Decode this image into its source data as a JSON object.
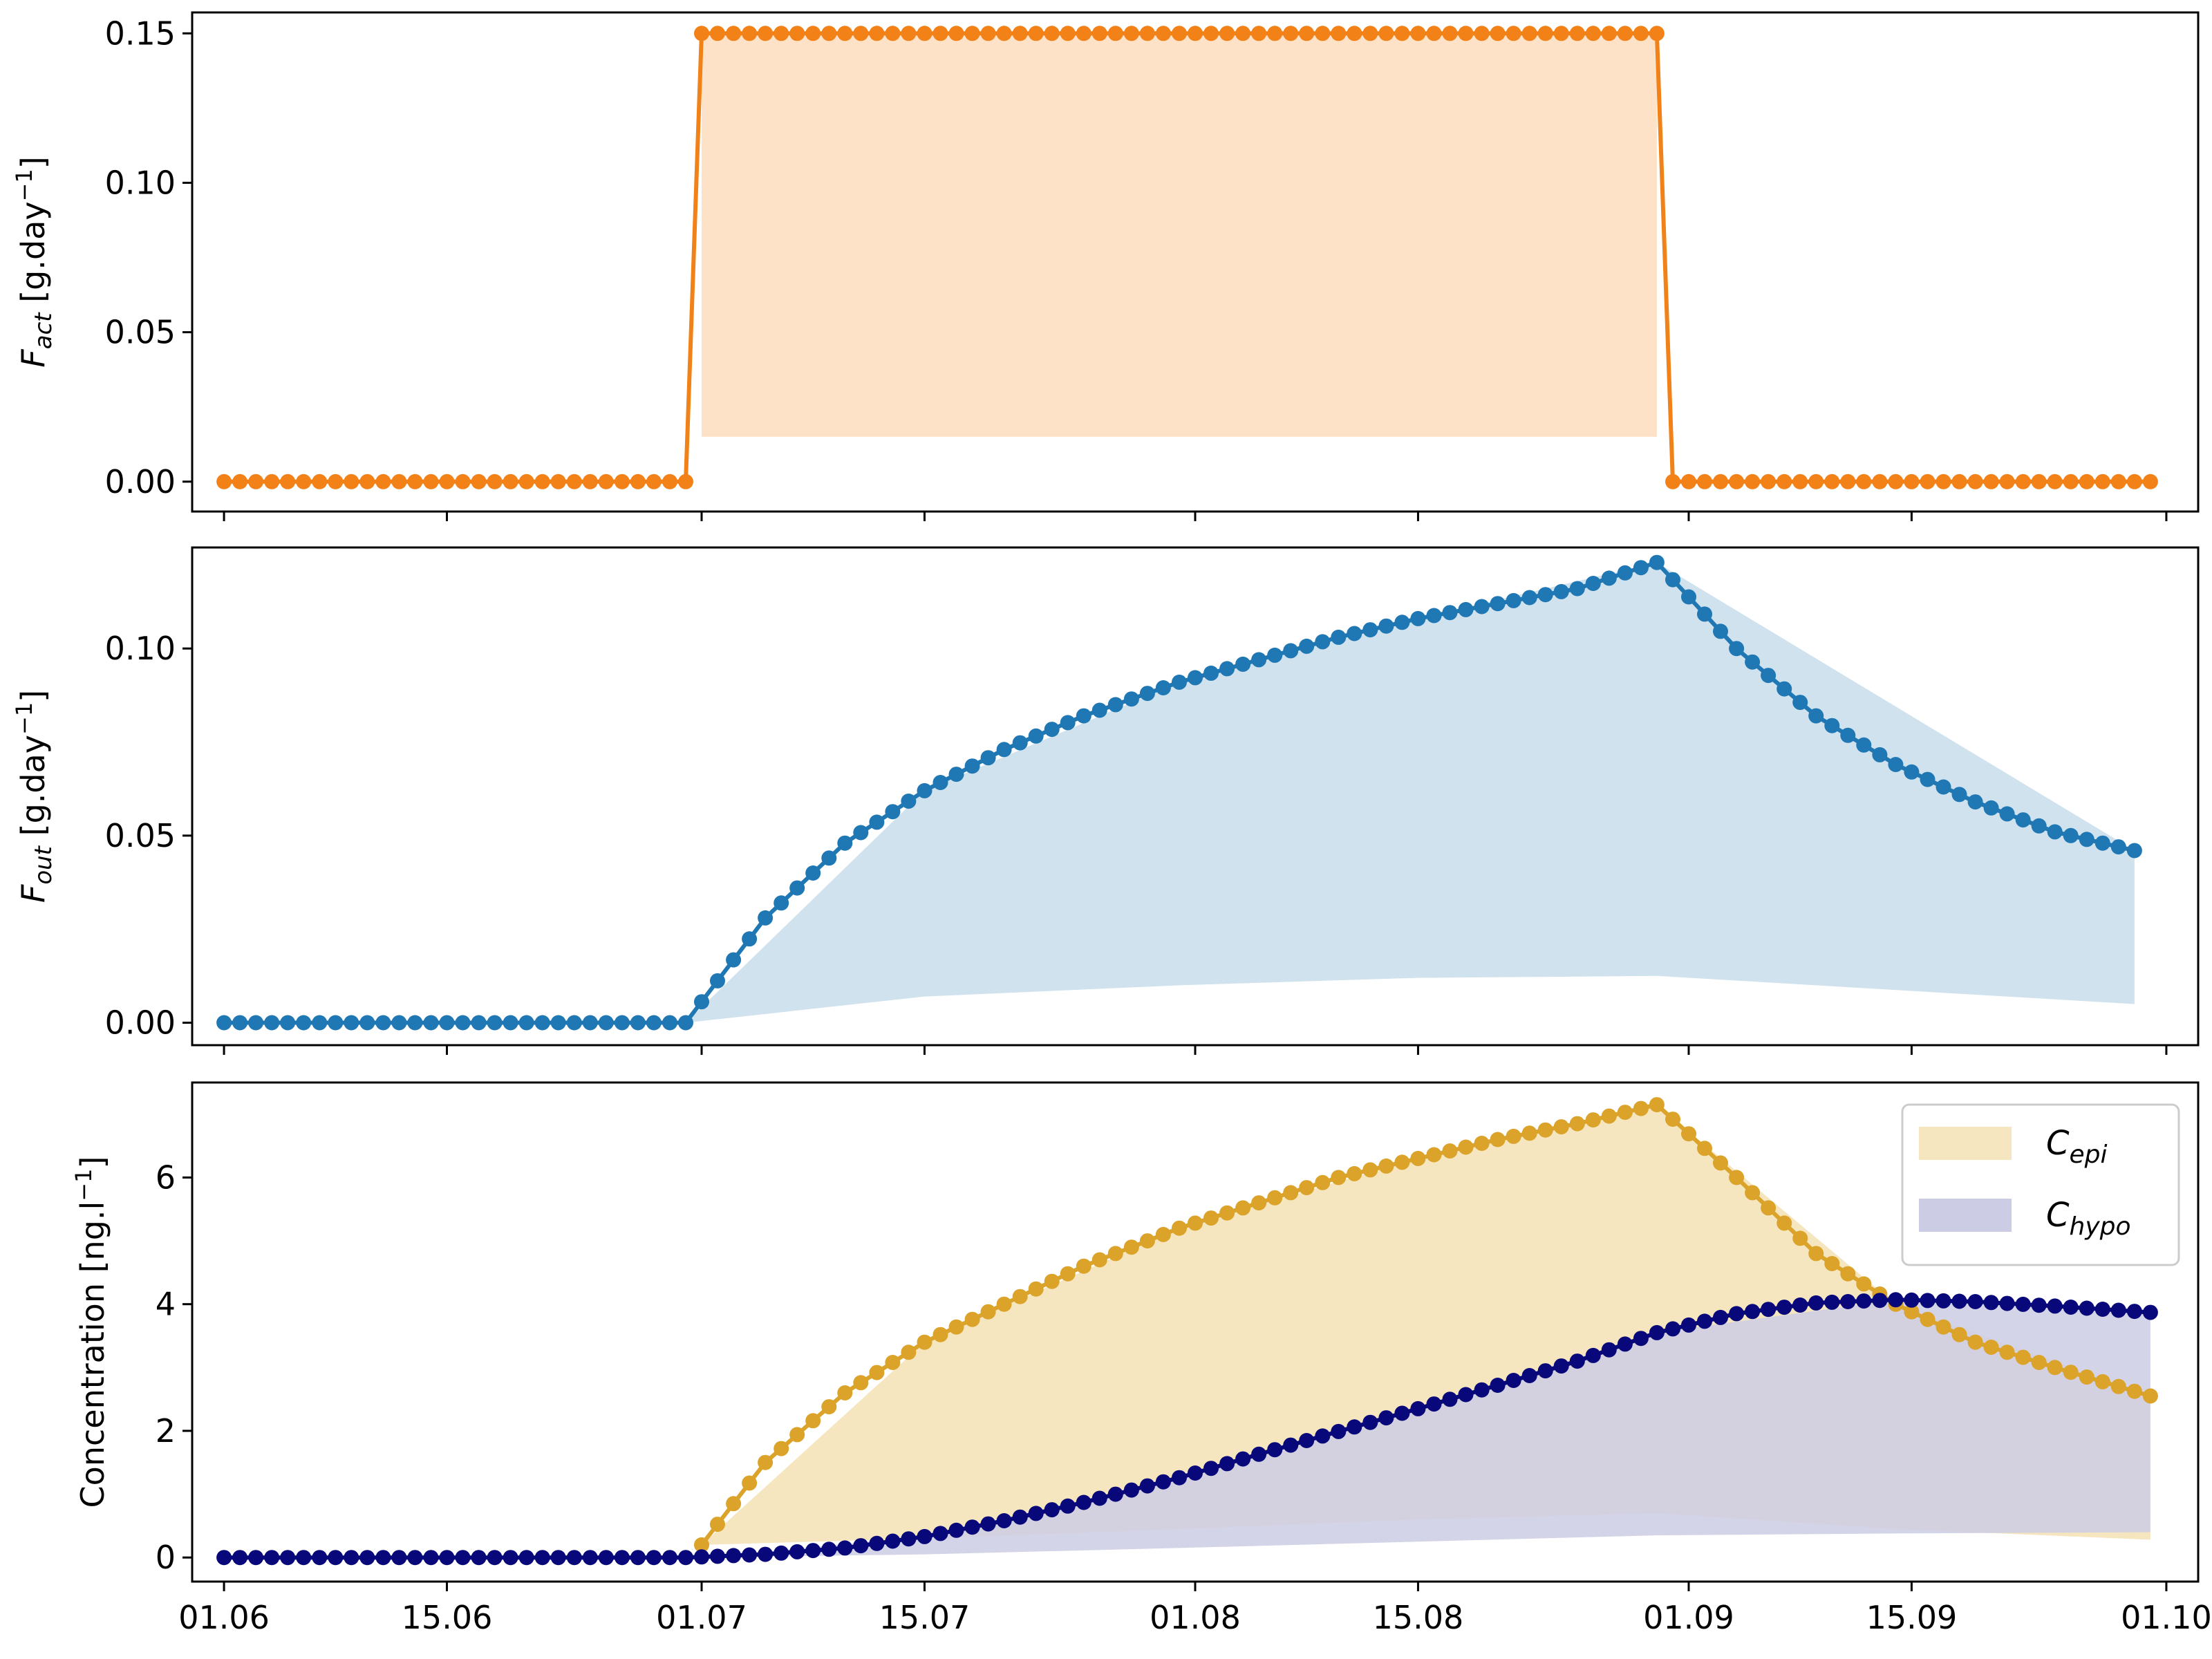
{
  "chart_data": [
    {
      "type": "line",
      "ylabel_main": "F",
      "ylabel_sub": "act",
      "ylabel_unit": " [g.day",
      "ylabel_exp": "−1",
      "ylabel_close": "]",
      "ylim": [
        -0.01,
        0.157
      ],
      "yticks": [
        0.0,
        0.05,
        0.1,
        0.15
      ],
      "ytick_labels": [
        "0.00",
        "0.05",
        "0.10",
        "0.15"
      ],
      "colors": {
        "line": "#f28118",
        "band": "#fde2c7"
      },
      "series": [
        {
          "x": [
            "2023-06-01",
            "2023-06-30",
            "2023-07-01",
            "2023-08-30",
            "2023-08-31",
            "2023-09-30"
          ],
          "y": [
            0.0,
            0.0,
            0.15,
            0.15,
            0.0,
            0.0
          ]
        }
      ],
      "band": {
        "x": [
          "2023-07-01",
          "2023-08-30"
        ],
        "lower": [
          0.015,
          0.015
        ],
        "upper": [
          0.15,
          0.15
        ]
      }
    },
    {
      "type": "line",
      "ylabel_main": "F",
      "ylabel_sub": "out",
      "ylabel_unit": " [g.day",
      "ylabel_exp": "−1",
      "ylabel_close": "]",
      "ylim": [
        -0.006,
        0.127
      ],
      "yticks": [
        0.0,
        0.05,
        0.1
      ],
      "ytick_labels": [
        "0.00",
        "0.05",
        "0.10"
      ],
      "colors": {
        "line": "#1f77b4",
        "band": "#cfe2ee"
      },
      "series": [
        {
          "x": [
            "2023-06-01",
            "2023-06-30",
            "2023-07-05",
            "2023-07-10",
            "2023-07-15",
            "2023-07-20",
            "2023-07-25",
            "2023-07-31",
            "2023-08-05",
            "2023-08-10",
            "2023-08-15",
            "2023-08-20",
            "2023-08-25",
            "2023-08-30",
            "2023-09-04",
            "2023-09-09",
            "2023-09-14",
            "2023-09-19",
            "2023-09-24",
            "2023-09-29"
          ],
          "y": [
            0.0,
            0.0,
            0.028,
            0.048,
            0.062,
            0.073,
            0.082,
            0.091,
            0.097,
            0.103,
            0.108,
            0.112,
            0.116,
            0.123,
            0.1,
            0.082,
            0.069,
            0.059,
            0.051,
            0.046
          ]
        }
      ],
      "band": {
        "x": [
          "2023-06-30",
          "2023-07-15",
          "2023-07-31",
          "2023-08-15",
          "2023-08-30",
          "2023-09-29"
        ],
        "lower": [
          0.0,
          0.007,
          0.01,
          0.012,
          0.0125,
          0.005
        ],
        "upper": [
          0.0,
          0.062,
          0.091,
          0.108,
          0.123,
          0.046
        ]
      }
    },
    {
      "type": "line",
      "ylabel": "Concentration [ng.l",
      "ylabel_exp": "−1",
      "ylabel_close": "]",
      "ylim": [
        -0.38,
        7.5
      ],
      "yticks": [
        0,
        2,
        4,
        6
      ],
      "ytick_labels": [
        "0",
        "2",
        "4",
        "6"
      ],
      "xticks": [
        "2023-06-01",
        "2023-06-15",
        "2023-07-01",
        "2023-07-15",
        "2023-08-01",
        "2023-08-15",
        "2023-09-01",
        "2023-09-15",
        "2023-10-01"
      ],
      "xtick_labels": [
        "01.06",
        "15.06",
        "01.07",
        "15.07",
        "01.08",
        "15.08",
        "01.09",
        "15.09",
        "01.10"
      ],
      "legend": {
        "position": "upper right",
        "entries": [
          {
            "main": "C",
            "sub": "epi",
            "color": "#f5e6c0"
          },
          {
            "main": "C",
            "sub": "hypo",
            "color": "#cccde4"
          }
        ]
      },
      "series": [
        {
          "name": "C_epi",
          "color": "#dba32a",
          "band_color": "#f5e6c0",
          "x": [
            "2023-07-01",
            "2023-07-05",
            "2023-07-10",
            "2023-07-15",
            "2023-07-20",
            "2023-07-25",
            "2023-07-31",
            "2023-08-05",
            "2023-08-10",
            "2023-08-15",
            "2023-08-20",
            "2023-08-25",
            "2023-08-30",
            "2023-09-04",
            "2023-09-09",
            "2023-09-14",
            "2023-09-19",
            "2023-09-24",
            "2023-09-30"
          ],
          "y": [
            0.2,
            1.5,
            2.6,
            3.4,
            4.0,
            4.6,
            5.2,
            5.6,
            6.0,
            6.3,
            6.6,
            6.85,
            7.15,
            6.0,
            4.8,
            4.0,
            3.4,
            3.0,
            2.55
          ]
        },
        {
          "name": "C_hypo",
          "color": "#08087a",
          "band_color": "#cccde4",
          "x": [
            "2023-06-01",
            "2023-06-30",
            "2023-07-05",
            "2023-07-10",
            "2023-07-15",
            "2023-07-20",
            "2023-07-25",
            "2023-07-31",
            "2023-08-05",
            "2023-08-10",
            "2023-08-15",
            "2023-08-20",
            "2023-08-25",
            "2023-08-30",
            "2023-09-04",
            "2023-09-09",
            "2023-09-14",
            "2023-09-19",
            "2023-09-24",
            "2023-09-30"
          ],
          "y": [
            0.0,
            0.0,
            0.05,
            0.15,
            0.33,
            0.58,
            0.87,
            1.26,
            1.63,
            1.99,
            2.35,
            2.72,
            3.1,
            3.55,
            3.85,
            4.02,
            4.07,
            4.04,
            3.97,
            3.87
          ]
        }
      ],
      "bands": [
        {
          "color": "#f5e6c0",
          "x": [
            "2023-07-01",
            "2023-07-15",
            "2023-07-31",
            "2023-08-15",
            "2023-08-30",
            "2023-09-14",
            "2023-09-30"
          ],
          "lower": [
            0.2,
            0.3,
            0.45,
            0.6,
            0.7,
            0.45,
            0.28
          ],
          "upper": [
            0.2,
            3.4,
            5.2,
            6.3,
            7.15,
            4.0,
            2.55
          ]
        },
        {
          "color": "#cccde4",
          "x": [
            "2023-07-01",
            "2023-07-15",
            "2023-07-31",
            "2023-08-15",
            "2023-08-30",
            "2023-09-14",
            "2023-09-30"
          ],
          "lower": [
            0.0,
            0.05,
            0.15,
            0.25,
            0.35,
            0.38,
            0.4
          ],
          "upper": [
            0.0,
            0.33,
            1.26,
            2.35,
            3.55,
            4.07,
            3.87
          ]
        }
      ]
    }
  ]
}
